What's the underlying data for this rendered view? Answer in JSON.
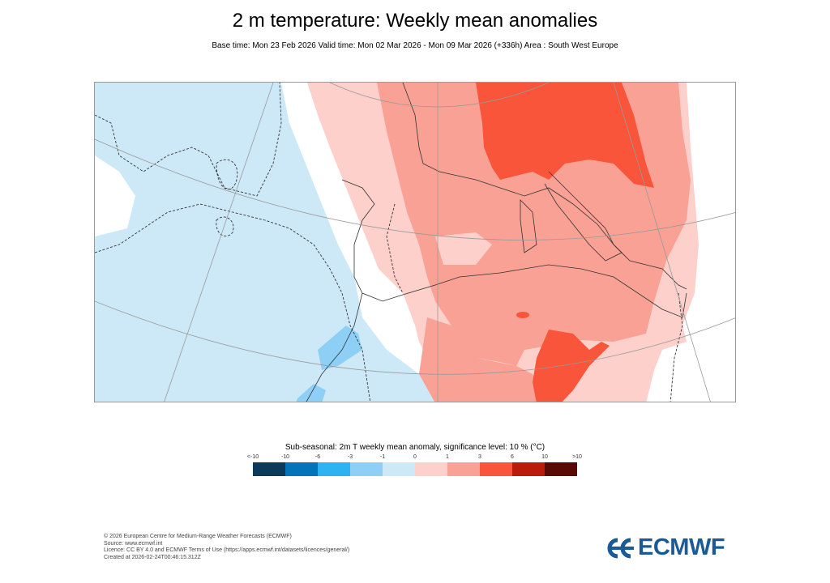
{
  "header": {
    "title": "2 m temperature: Weekly mean anomalies",
    "subtitle": "Base time: Mon 23 Feb 2026 Valid time: Mon 02 Mar 2026 - Mon 09 Mar 2026 (+336h) Area : South West Europe"
  },
  "map": {
    "area": "South West Europe",
    "colors": {
      "ocean_base": "#cde9f8",
      "neutral": "#ffffff",
      "pos_1_3": "#fdd0cb",
      "pos_3_6": "#f9a195",
      "pos_6_10": "#f9553a",
      "neg_3_1": "#8ed0f5"
    }
  },
  "legend": {
    "title": "Sub-seasonal: 2m T weekly mean anomaly, significance level: 10 % (°C)",
    "ticks": [
      "<-10",
      "-10",
      "-6",
      "-3",
      "-1",
      "0",
      "1",
      "3",
      "6",
      "10",
      ">10"
    ],
    "colors": [
      "#0b3a5a",
      "#0474b8",
      "#2db3f2",
      "#8ed0f5",
      "#cde9f8",
      "#fdd0cb",
      "#f9a195",
      "#f9553a",
      "#b91c08",
      "#5a0a04"
    ]
  },
  "footer": {
    "lines": [
      "© 2026 European Centre for Medium-Range Weather Forecasts (ECMWF)",
      "Source: www.ecmwf.int",
      "Licence: CC BY 4.0 and ECMWF Terms of Use (https://apps.ecmwf.int/datasets/licences/general/)",
      "Created at 2026-02-24T00:46:15.312Z"
    ]
  },
  "logo": {
    "text": "ECMWF",
    "color": "#1a5a96"
  }
}
